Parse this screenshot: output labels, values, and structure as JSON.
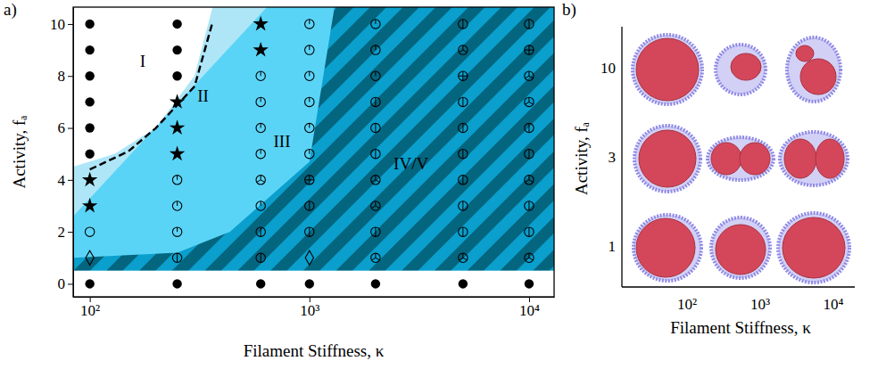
{
  "chart_data": [
    {
      "type": "phase_diagram",
      "title": "a)",
      "xlabel": "Filament Stiffness, κ",
      "ylabel": "Activity, fₐ",
      "log": "x",
      "xlim": [
        84,
        13000
      ],
      "ylim": [
        -0.5,
        10.65
      ],
      "xticks": [
        {
          "value": 100,
          "label": "10²"
        },
        {
          "value": 1000,
          "label": "10³"
        },
        {
          "value": 10000,
          "label": "10⁴"
        }
      ],
      "yticks": [
        0,
        2,
        4,
        6,
        8,
        10
      ],
      "regions": [
        {
          "label": "III",
          "color": "#5ad4f6",
          "x": [
            84,
            13000,
            13000,
            84
          ],
          "y": [
            -0.5,
            -0.5,
            10.65,
            10.65
          ],
          "label_x": 750,
          "label_y": 5.4
        },
        {
          "label": "II",
          "color": "#aee6f8",
          "x": [
            84,
            130,
            200,
            300,
            363,
            640,
            84
          ],
          "y": [
            4.5,
            5.0,
            6.0,
            8.0,
            10.65,
            10.65,
            2.6
          ],
          "label_x": 328,
          "label_y": 7.15
        },
        {
          "label": "IV/V",
          "colors": [
            "#0a9fcc",
            "#04657f"
          ],
          "x": [
            84,
            84,
            250,
            434,
            1000,
            1300,
            13000,
            13000
          ],
          "y": [
            0.5,
            1.0,
            1.2,
            2.0,
            4.7,
            10.65,
            10.65,
            0.5
          ],
          "label_x": 2900,
          "label_y": 4.55
        },
        {
          "label": "I",
          "color": "#ffffff",
          "x": [
            84,
            130,
            200,
            300,
            363,
            84
          ],
          "y": [
            4.5,
            5.0,
            6.0,
            8.0,
            10.65,
            10.65
          ],
          "label_x": 174,
          "label_y": 8.5
        },
        {
          "color": "#ffffff",
          "x": [
            84,
            13000,
            13000,
            84
          ],
          "y": [
            -0.5,
            -0.5,
            0.5,
            0.5
          ]
        }
      ],
      "boundary": {
        "line_style": "dashed",
        "color": "#000000",
        "x": [
          100,
          150,
          200,
          300,
          363
        ],
        "values": [
          4.4,
          5.1,
          6.0,
          7.6,
          10.1
        ]
      },
      "series": [
        {
          "marker": "filled-circle",
          "x": [
            100,
            250,
            600,
            1000,
            2000,
            5000,
            10000,
            100,
            100,
            100,
            100,
            100,
            100,
            250,
            250,
            250
          ],
          "values": [
            0,
            0,
            0,
            0,
            0,
            0,
            0,
            5,
            6,
            7,
            8,
            9,
            10,
            8,
            9,
            10
          ]
        },
        {
          "marker": "diamond",
          "x": [
            100,
            1000
          ],
          "values": [
            1,
            1
          ]
        },
        {
          "marker": "open-circle",
          "x": [
            100
          ],
          "values": [
            2
          ]
        },
        {
          "marker": "star",
          "x": [
            100,
            100,
            250,
            250,
            250,
            600,
            600
          ],
          "values": [
            3,
            4,
            5,
            6,
            7,
            9,
            10
          ]
        },
        {
          "marker": "circle-bar",
          "x": [
            250,
            600,
            600,
            1000,
            1000,
            2000,
            2000,
            2000,
            2000,
            5000,
            5000,
            5000,
            5000,
            5000,
            5000,
            5000,
            10000,
            10000,
            10000,
            10000,
            10000
          ],
          "values": [
            1,
            1,
            2,
            2,
            3,
            2,
            5,
            6,
            7,
            2,
            3,
            4,
            5,
            6,
            7,
            10,
            2,
            3,
            5,
            6,
            10
          ]
        },
        {
          "marker": "circle-half-bar",
          "x": [
            250,
            250,
            250,
            600,
            600,
            600,
            600,
            600,
            1000,
            1000,
            1000,
            1000,
            1000,
            1000,
            2000,
            2000,
            2000
          ],
          "values": [
            2,
            3,
            4,
            3,
            5,
            6,
            7,
            8,
            5,
            6,
            7,
            8,
            9,
            10,
            8,
            9,
            10
          ]
        },
        {
          "marker": "circle-tri",
          "x": [
            600,
            2000,
            2000,
            2000,
            5000,
            5000,
            10000,
            10000,
            10000,
            10000
          ],
          "values": [
            4,
            1,
            3,
            4,
            1,
            9,
            1,
            4,
            7,
            8
          ]
        },
        {
          "marker": "circle-cross",
          "x": [
            1000,
            5000,
            10000
          ],
          "values": [
            4,
            8,
            9
          ]
        }
      ]
    },
    {
      "type": "image_grid",
      "title": "b)",
      "xlabel": "Filament Stiffness, κ",
      "ylabel": "Activity, fₐ",
      "xticks": [
        {
          "value": 100,
          "label": "10²"
        },
        {
          "value": 1000,
          "label": "10³"
        },
        {
          "value": 10000,
          "label": "10⁴"
        }
      ],
      "yticks": [
        1,
        3,
        10
      ]
    }
  ]
}
